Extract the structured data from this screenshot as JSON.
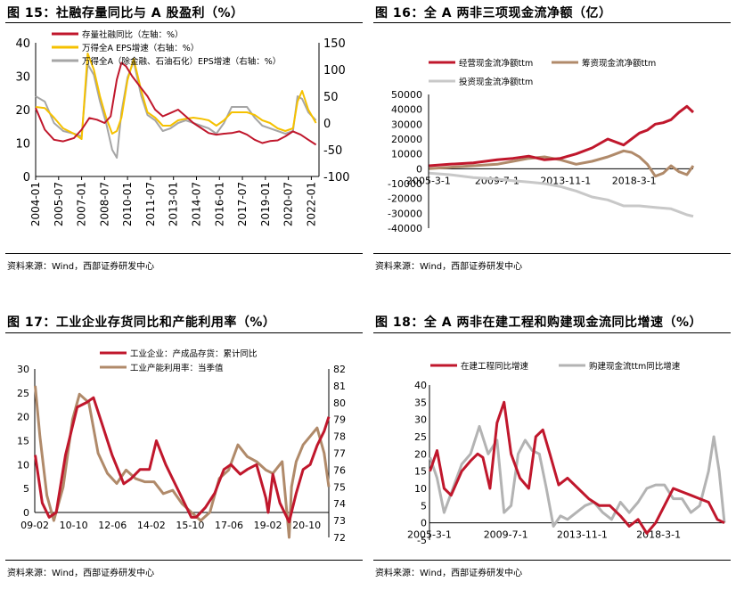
{
  "panels": [
    {
      "title": "图 15：社融存量同比与 A 股盈利（%）",
      "source": "资料来源：Wind，西部证券研发中心",
      "chart_data": {
        "type": "line",
        "left_axis": {
          "ticks": [
            0,
            10,
            20,
            30,
            40
          ],
          "ylim": [
            0,
            40
          ]
        },
        "right_axis": {
          "ticks": [
            -100,
            -50,
            0,
            50,
            100,
            150
          ],
          "ylim": [
            -100,
            150
          ]
        },
        "x_range": [
          "2004-01",
          "2022-06"
        ],
        "x_ticks": [
          "2004-01",
          "2005-07",
          "2007-01",
          "2008-07",
          "2010-01",
          "2011-07",
          "2013-01",
          "2014-07",
          "2016-01",
          "2017-07",
          "2019-01",
          "2020-07",
          "2022-01"
        ],
        "series": [
          {
            "name": "存量社融同比（左轴：%）",
            "color": "#c0172c",
            "axis": "left",
            "x": [
              2004.0,
              2004.6,
              2005.2,
              2005.8,
              2006.5,
              2007.0,
              2007.5,
              2008.0,
              2008.5,
              2008.9,
              2009.3,
              2009.6,
              2009.9,
              2010.3,
              2010.8,
              2011.3,
              2011.8,
              2012.3,
              2012.8,
              2013.3,
              2013.8,
              2014.3,
              2014.8,
              2015.3,
              2015.8,
              2016.3,
              2016.8,
              2017.3,
              2017.8,
              2018.3,
              2018.8,
              2019.3,
              2019.8,
              2020.3,
              2020.8,
              2021.3,
              2021.8,
              2022.3
            ],
            "y": [
              20.5,
              14,
              11,
              10.5,
              11.5,
              14,
              17.5,
              17,
              16,
              18,
              29,
              34,
              33,
              30,
              27,
              24,
              20,
              18,
              19,
              20,
              18,
              16,
              14.5,
              13,
              12.5,
              12.8,
              13,
              13.5,
              12.5,
              11,
              10,
              10.6,
              10.8,
              12,
              13.5,
              12.5,
              11,
              9.5
            ]
          },
          {
            "name": "万得全A EPS增速（右轴：%）",
            "color": "#f5c100",
            "axis": "right",
            "x": [
              2004.0,
              2004.6,
              2005.2,
              2005.8,
              2006.5,
              2007.0,
              2007.4,
              2007.8,
              2008.2,
              2008.6,
              2009.0,
              2009.3,
              2009.6,
              2010.0,
              2010.4,
              2010.9,
              2011.3,
              2011.8,
              2012.3,
              2012.8,
              2013.3,
              2013.8,
              2014.3,
              2014.8,
              2015.3,
              2015.8,
              2016.3,
              2016.8,
              2017.3,
              2017.8,
              2018.3,
              2018.8,
              2019.3,
              2019.8,
              2020.3,
              2020.8,
              2021.1,
              2021.4,
              2021.8,
              2022.3
            ],
            "y": [
              30,
              28,
              10,
              -10,
              -20,
              -30,
              130,
              100,
              50,
              10,
              -20,
              -15,
              10,
              80,
              120,
              60,
              20,
              10,
              -5,
              -5,
              5,
              8,
              10,
              8,
              5,
              -5,
              5,
              20,
              20,
              20,
              15,
              5,
              0,
              -10,
              -15,
              -10,
              40,
              60,
              25,
              0
            ]
          },
          {
            "name": "万得全A（除金融、石油石化）EPS增速（右轴：%）",
            "color": "#a6a6a6",
            "axis": "right",
            "x": [
              2004.0,
              2004.6,
              2005.2,
              2005.8,
              2006.5,
              2007.0,
              2007.4,
              2007.8,
              2008.2,
              2008.6,
              2009.0,
              2009.3,
              2009.6,
              2010.0,
              2010.4,
              2010.9,
              2011.3,
              2011.8,
              2012.3,
              2012.8,
              2013.3,
              2013.8,
              2014.3,
              2014.8,
              2015.3,
              2015.8,
              2016.3,
              2016.8,
              2017.3,
              2017.8,
              2018.3,
              2018.8,
              2019.3,
              2019.8,
              2020.3,
              2020.8,
              2021.1,
              2021.4,
              2021.8,
              2022.3
            ],
            "y": [
              50,
              40,
              0,
              -15,
              -20,
              -25,
              110,
              90,
              40,
              0,
              -50,
              -65,
              20,
              85,
              115,
              50,
              15,
              5,
              -15,
              -10,
              0,
              5,
              0,
              -5,
              -10,
              -20,
              0,
              30,
              30,
              30,
              10,
              -5,
              -10,
              -15,
              -20,
              -15,
              50,
              45,
              20,
              5
            ]
          }
        ]
      }
    },
    {
      "title": "图 16：全 A 两非三项现金流净额（亿）",
      "source": "资料来源：Wind，西部证券研发中心",
      "chart_data": {
        "type": "line",
        "y_ticks": [
          "50000",
          "40000",
          "30000",
          "20000",
          "10000",
          "0",
          "-10000",
          "-20000",
          "-30000",
          "-40000"
        ],
        "ylim": [
          -40000,
          50000
        ],
        "x_range": [
          2005.17,
          2021.9
        ],
        "x_ticks": [
          "2005-3-1",
          "2009-7-1",
          "2013-11-1",
          "2018-3-1"
        ],
        "series": [
          {
            "name": "经营现金流净额ttm",
            "color": "#c0172c",
            "x": [
              2005.2,
              2006.5,
              2008.0,
              2009.5,
              2010.5,
              2011.5,
              2012.5,
              2013.5,
              2014.5,
              2015.5,
              2016.5,
              2017.5,
              2018.5,
              2019.0,
              2019.5,
              2020.0,
              2020.5,
              2021.0,
              2021.5,
              2021.9
            ],
            "y": [
              2000,
              3000,
              4000,
              6000,
              7000,
              8500,
              6000,
              7000,
              10000,
              14000,
              20000,
              16000,
              24000,
              26000,
              30000,
              31000,
              33000,
              38000,
              42000,
              38000
            ]
          },
          {
            "name": "筹资现金流净额ttm",
            "color": "#b08a6a",
            "x": [
              2005.2,
              2006.5,
              2008.0,
              2009.5,
              2010.5,
              2011.5,
              2012.5,
              2013.5,
              2014.5,
              2015.5,
              2016.5,
              2017.0,
              2017.5,
              2018.0,
              2018.5,
              2019.0,
              2019.5,
              2020.0,
              2020.5,
              2021.0,
              2021.5,
              2021.9
            ],
            "y": [
              0,
              1000,
              2000,
              3000,
              5000,
              7000,
              8000,
              6000,
              3000,
              5000,
              8000,
              10000,
              12000,
              11000,
              8000,
              3000,
              -5000,
              -3000,
              2000,
              -2000,
              -4000,
              2000
            ]
          },
          {
            "name": "投资现金流净额ttm",
            "color": "#c8c8c8",
            "x": [
              2005.2,
              2006.5,
              2008.0,
              2009.5,
              2010.5,
              2011.5,
              2012.5,
              2013.5,
              2014.5,
              2015.5,
              2016.5,
              2017.5,
              2018.5,
              2019.5,
              2020.5,
              2021.5,
              2021.9
            ],
            "y": [
              -3000,
              -4000,
              -6000,
              -7000,
              -8000,
              -9000,
              -10000,
              -12000,
              -15000,
              -19000,
              -21000,
              -25000,
              -25000,
              -26000,
              -27000,
              -31000,
              -32000
            ]
          }
        ]
      }
    },
    {
      "title": "图 17：工业企业存货同比和产能利用率（%）",
      "source": "资料来源：Wind，西部证券研发中心",
      "chart_data": {
        "type": "line",
        "left_axis": {
          "ticks": [
            0,
            5,
            10,
            15,
            20,
            25,
            30
          ],
          "ylim": [
            0,
            30
          ]
        },
        "right_axis": {
          "ticks": [
            72,
            73,
            74,
            75,
            76,
            77,
            78,
            79,
            80,
            81,
            82
          ],
          "ylim": [
            72,
            82
          ]
        },
        "x_range": [
          2009.08,
          2021.7
        ],
        "x_ticks": [
          "09-02",
          "10-10",
          "12-06",
          "14-02",
          "15-10",
          "17-06",
          "19-02",
          "20-10"
        ],
        "series": [
          {
            "name": "工业企业：产成品存货：累计同比",
            "color": "#c0172c",
            "axis": "left",
            "x": [
              2009.1,
              2009.4,
              2009.7,
              2010.0,
              2010.4,
              2010.9,
              2011.3,
              2011.6,
              2012.0,
              2012.4,
              2012.9,
              2013.2,
              2013.6,
              2014.0,
              2014.3,
              2014.7,
              2015.0,
              2015.4,
              2015.8,
              2016.0,
              2016.4,
              2016.8,
              2017.2,
              2017.5,
              2017.9,
              2018.2,
              2018.6,
              2019.0,
              2019.1,
              2019.3,
              2019.6,
              2020.0,
              2020.3,
              2020.6,
              2020.9,
              2021.2,
              2021.5,
              2021.7
            ],
            "y": [
              12,
              2,
              -1,
              0,
              12,
              22,
              23,
              24,
              18,
              12,
              6,
              7,
              9,
              9,
              15,
              10,
              7,
              3,
              -1,
              -1,
              1,
              4,
              9,
              10,
              8,
              9,
              10,
              3,
              0,
              8,
              2,
              -2,
              4,
              9,
              10,
              14,
              17,
              20
            ]
          },
          {
            "name": "工业产能利用率：当季值",
            "color": "#b08a6a",
            "axis": "right",
            "x": [
              2009.1,
              2009.3,
              2009.6,
              2009.9,
              2010.3,
              2010.7,
              2011.0,
              2011.4,
              2011.8,
              2012.2,
              2012.6,
              2013.0,
              2013.4,
              2013.8,
              2014.2,
              2014.6,
              2015.0,
              2015.4,
              2015.8,
              2016.2,
              2016.6,
              2017.0,
              2017.4,
              2017.8,
              2018.2,
              2018.6,
              2019.0,
              2019.3,
              2019.7,
              2020.0,
              2020.1,
              2020.3,
              2020.6,
              2020.9,
              2021.2,
              2021.5,
              2021.7
            ],
            "y": [
              81,
              78,
              74.5,
              73,
              75,
              79,
              80.5,
              80,
              77,
              75.8,
              75.2,
              76,
              75.5,
              75.3,
              75.3,
              74.6,
              74.8,
              74,
              73.5,
              73,
              73.5,
              75.5,
              76,
              77.5,
              76.8,
              76.5,
              76,
              75.8,
              76.5,
              72,
              75,
              76.5,
              77.5,
              78,
              78.5,
              77,
              75
            ]
          }
        ]
      }
    },
    {
      "title": "图 18：全 A 两非在建工程和购建现金流同比增速（%）",
      "source": "资料来源：Wind，西部证券研发中心",
      "chart_data": {
        "type": "line",
        "y_ticks": [
          -5,
          0,
          5,
          10,
          15,
          20,
          25,
          30,
          35,
          40
        ],
        "ylim": [
          -5,
          40
        ],
        "x_range": [
          2005.17,
          2021.9
        ],
        "x_ticks": [
          "2005-3-1",
          "2009-7-1",
          "2013-11-1",
          "2018-3-1"
        ],
        "series": [
          {
            "name": "在建工程同比增速",
            "color": "#c0172c",
            "x": [
              2005.2,
              2005.6,
              2006.0,
              2006.4,
              2007.0,
              2007.5,
              2007.9,
              2008.2,
              2008.6,
              2009.0,
              2009.4,
              2009.8,
              2010.3,
              2010.8,
              2011.2,
              2011.6,
              2012.0,
              2012.5,
              2013.0,
              2013.6,
              2014.2,
              2014.8,
              2015.4,
              2016.0,
              2016.5,
              2017.0,
              2017.5,
              2018.0,
              2018.5,
              2019.0,
              2019.5,
              2020.0,
              2020.5,
              2021.0,
              2021.5,
              2021.9
            ],
            "y": [
              15,
              21,
              10,
              8,
              15,
              18,
              20,
              19,
              10,
              29,
              35,
              20,
              13,
              10,
              25,
              27,
              20,
              11,
              13,
              10,
              7,
              5,
              5,
              2,
              -1,
              1,
              -3,
              0,
              5,
              10,
              9,
              8,
              7,
              6,
              1,
              0
            ]
          },
          {
            "name": "购建现金流ttm同比增速",
            "color": "#b3b3b3",
            "x": [
              2005.2,
              2005.6,
              2006.0,
              2006.5,
              2007.0,
              2007.5,
              2008.0,
              2008.5,
              2009.0,
              2009.4,
              2009.8,
              2010.2,
              2010.6,
              2011.0,
              2011.4,
              2011.8,
              2012.2,
              2012.6,
              2013.0,
              2013.5,
              2014.0,
              2014.5,
              2015.0,
              2015.5,
              2016.0,
              2016.5,
              2017.0,
              2017.5,
              2018.0,
              2018.5,
              2019.0,
              2019.5,
              2020.0,
              2020.5,
              2021.0,
              2021.3,
              2021.6,
              2021.9
            ],
            "y": [
              19,
              13,
              3,
              10,
              17,
              20,
              28,
              20,
              24,
              3,
              5,
              20,
              24,
              21,
              20,
              10,
              -1,
              2,
              1,
              3,
              5,
              6,
              3,
              1,
              6,
              3,
              6,
              10,
              11,
              11,
              7,
              7,
              3,
              5,
              15,
              25,
              15,
              0
            ]
          }
        ]
      }
    }
  ]
}
